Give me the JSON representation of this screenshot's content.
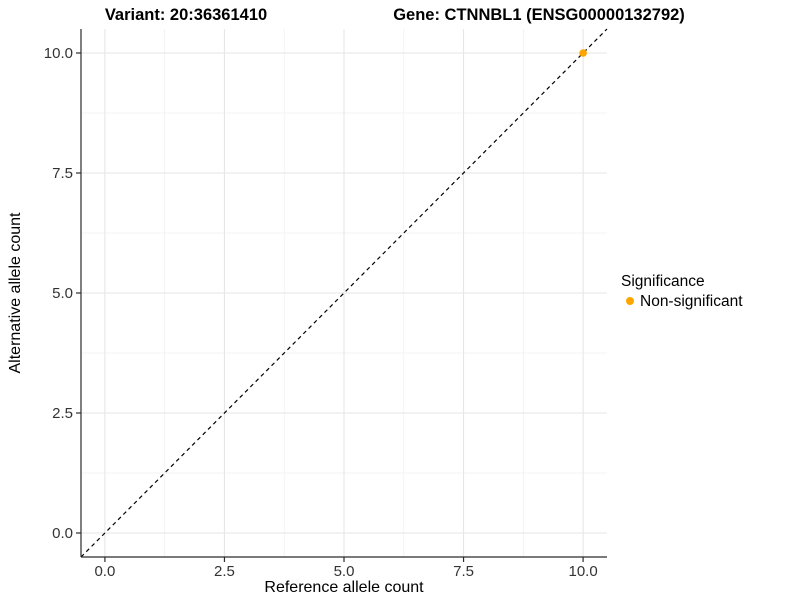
{
  "figure": {
    "background": "#FFFFFF"
  },
  "chart_data": {
    "type": "scatter",
    "titles": {
      "left": "Variant: 20:36361410",
      "right": "Gene: CTNNBL1 (ENSG00000132792)"
    },
    "xlabel": "Reference allele count",
    "ylabel": "Alternative allele count",
    "xlim": [
      -0.5,
      10.5
    ],
    "ylim": [
      -0.5,
      10.5
    ],
    "xticks": {
      "values": [
        0,
        2.5,
        5,
        7.5,
        10
      ],
      "labels": [
        "0.0",
        "2.5",
        "5.0",
        "7.5",
        "10.0"
      ]
    },
    "yticks": {
      "values": [
        0,
        2.5,
        5,
        7.5,
        10
      ],
      "labels": [
        "0.0",
        "2.5",
        "5.0",
        "7.5",
        "10.0"
      ]
    },
    "xminor": [
      1.25,
      3.75,
      6.25,
      8.75
    ],
    "yminor": [
      1.25,
      3.75,
      6.25,
      8.75
    ],
    "grid": {
      "show": true,
      "major_color": "#E6E6E6",
      "minor_color": "#EFEFEF"
    },
    "abline": {
      "slope": 1,
      "intercept": 0,
      "linetype": "dashed",
      "color": "#000000"
    },
    "series": [
      {
        "name": "Non-significant",
        "color": "#FFA500",
        "points": [
          {
            "x": 10,
            "y": 10
          }
        ]
      }
    ],
    "legend": {
      "title": "Significance",
      "position": "right",
      "items": [
        {
          "label": "Non-significant",
          "color": "#FFA500"
        }
      ]
    },
    "colors": {
      "axis_line": "#2B2B2B",
      "tick_mark": "#2B2B2B",
      "tick_text": "#333333",
      "title_text": "#000000"
    }
  }
}
